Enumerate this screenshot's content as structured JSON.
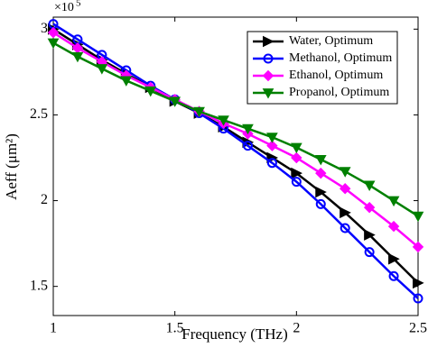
{
  "chart_data": {
    "type": "line",
    "xlabel": "Frequency (THz)",
    "ylabel": "Aeff (μm²)",
    "y_scale_base": "×10",
    "y_scale_exponent": "5",
    "x": [
      1,
      1.1,
      1.2,
      1.3,
      1.4,
      1.5,
      1.6,
      1.7,
      1.8,
      1.9,
      2,
      2.1,
      2.2,
      2.3,
      2.4,
      2.5
    ],
    "series": [
      {
        "name": "Water, Optimum",
        "color": "#000000",
        "marker": "triangle-right",
        "values": [
          3.0,
          2.91,
          2.82,
          2.74,
          2.66,
          2.58,
          2.51,
          2.43,
          2.34,
          2.25,
          2.16,
          2.05,
          1.93,
          1.8,
          1.66,
          1.52
        ]
      },
      {
        "name": "Methanol, Optimum",
        "color": "#0000ff",
        "marker": "circle",
        "values": [
          3.03,
          2.94,
          2.85,
          2.76,
          2.67,
          2.59,
          2.51,
          2.42,
          2.32,
          2.22,
          2.11,
          1.98,
          1.84,
          1.7,
          1.56,
          1.43
        ]
      },
      {
        "name": "Ethanol, Optimum",
        "color": "#ff00ff",
        "marker": "diamond",
        "values": [
          2.98,
          2.89,
          2.81,
          2.73,
          2.66,
          2.59,
          2.52,
          2.45,
          2.39,
          2.32,
          2.25,
          2.16,
          2.07,
          1.96,
          1.85,
          1.73
        ]
      },
      {
        "name": "Propanol, Optimum",
        "color": "#008000",
        "marker": "triangle-down",
        "values": [
          2.92,
          2.84,
          2.77,
          2.7,
          2.64,
          2.58,
          2.52,
          2.47,
          2.42,
          2.37,
          2.31,
          2.24,
          2.17,
          2.09,
          2.0,
          1.91
        ]
      }
    ],
    "xlim": [
      1,
      2.5
    ],
    "xticks": [
      1,
      1.5,
      2,
      2.5
    ],
    "ylim": [
      1.33,
      3.07
    ],
    "yticks": [
      1.5,
      2,
      2.5,
      3
    ],
    "grid": false,
    "legend": "top-right"
  }
}
